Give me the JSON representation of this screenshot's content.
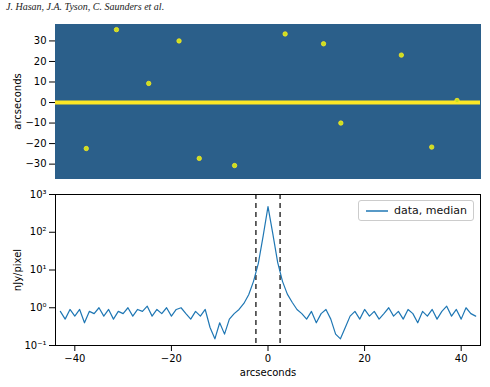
{
  "header": "J. Hasan, J.A. Tyson, C. Saunders et al.",
  "chart_data": [
    {
      "type": "image",
      "ylabel": "arcseconds",
      "xlim": [
        -145,
        145
      ],
      "ylim": [
        -37,
        38
      ],
      "yticks": [
        30,
        20,
        10,
        0,
        {
          "value": -10,
          "label": "−10"
        },
        {
          "value": -20,
          "label": "−20"
        },
        {
          "value": -30,
          "label": "−30"
        }
      ],
      "tick_labels": "y",
      "color": "#2b5f8a",
      "streak": 0,
      "sources": {
        "x": [
          -103.4,
          11.7,
          37.9,
          -60.7,
          129,
          -124,
          -46.9,
          -22.8,
          91,
          111.7,
          49.7,
          -81.4
        ],
        "y": [
          35.5,
          33.4,
          28.6,
          30,
          1,
          -22.4,
          -27.2,
          -30.7,
          23.1,
          -21.7,
          -10,
          9.3
        ]
      }
    },
    {
      "type": "line",
      "xlabel": "arcseconds",
      "ylabel": "nJy/pixel",
      "xlim": [
        -44,
        44
      ],
      "ylim": [
        0.1,
        1000
      ],
      "log": "y",
      "xticks": [
        {
          "value": -40,
          "label": "−40"
        },
        {
          "value": -20,
          "label": "−20"
        },
        0,
        20,
        40
      ],
      "yticks": [
        {
          "value": 0.1,
          "label": "10⁻¹"
        },
        {
          "value": 1,
          "label": "10⁰"
        },
        {
          "value": 10,
          "label": "10¹"
        },
        {
          "value": 100,
          "label": "10²"
        },
        {
          "value": 1000,
          "label": "10³"
        }
      ],
      "legend": "upper right",
      "vlines": {
        "x": [
          -2.5,
          2.5
        ],
        "line_style": "dashed"
      },
      "x": [
        -43,
        -42,
        -41,
        -40,
        -39,
        -38,
        -37,
        -36,
        -35,
        -34,
        -33,
        -32,
        -31,
        -30,
        -29,
        -28,
        -27,
        -26,
        -25,
        -24,
        -23,
        -22,
        -21,
        -20,
        -19,
        -18,
        -17,
        -16,
        -15,
        -14,
        -13,
        -12,
        -11,
        -10,
        -9,
        -8,
        -7,
        -6,
        -5,
        -4,
        -3,
        -2,
        -1,
        0,
        1,
        2,
        3,
        4,
        5,
        6,
        7,
        8,
        9,
        10,
        11,
        12,
        13,
        14,
        15,
        16,
        17,
        18,
        19,
        20,
        21,
        22,
        23,
        24,
        25,
        26,
        27,
        28,
        29,
        30,
        31,
        32,
        33,
        34,
        35,
        36,
        37,
        38,
        39,
        40,
        41,
        42,
        43
      ],
      "series": [
        {
          "name": "data, median",
          "color": "#1f77b4",
          "values": [
            0.8,
            0.5,
            0.9,
            0.6,
            0.9,
            0.4,
            0.8,
            0.7,
            1.0,
            0.6,
            0.9,
            0.5,
            0.8,
            0.7,
            1.0,
            0.6,
            0.9,
            0.8,
            1.1,
            0.6,
            0.9,
            0.7,
            1.0,
            0.6,
            0.9,
            1.0,
            0.7,
            0.5,
            0.8,
            0.6,
            0.9,
            0.3,
            0.15,
            0.4,
            0.2,
            0.5,
            0.7,
            0.9,
            1.3,
            2.2,
            5,
            15,
            80,
            480,
            90,
            16,
            5,
            2.3,
            1.4,
            0.9,
            0.7,
            0.5,
            0.8,
            0.4,
            0.7,
            0.9,
            0.5,
            0.2,
            0.15,
            0.3,
            0.6,
            0.8,
            0.5,
            0.9,
            0.6,
            0.8,
            0.5,
            0.7,
            1.0,
            0.6,
            0.8,
            0.5,
            0.9,
            0.7,
            0.4,
            0.8,
            0.6,
            0.9,
            0.5,
            0.8,
            1.1,
            0.6,
            0.9,
            0.5,
            1.0,
            0.7,
            0.6
          ]
        }
      ]
    }
  ]
}
